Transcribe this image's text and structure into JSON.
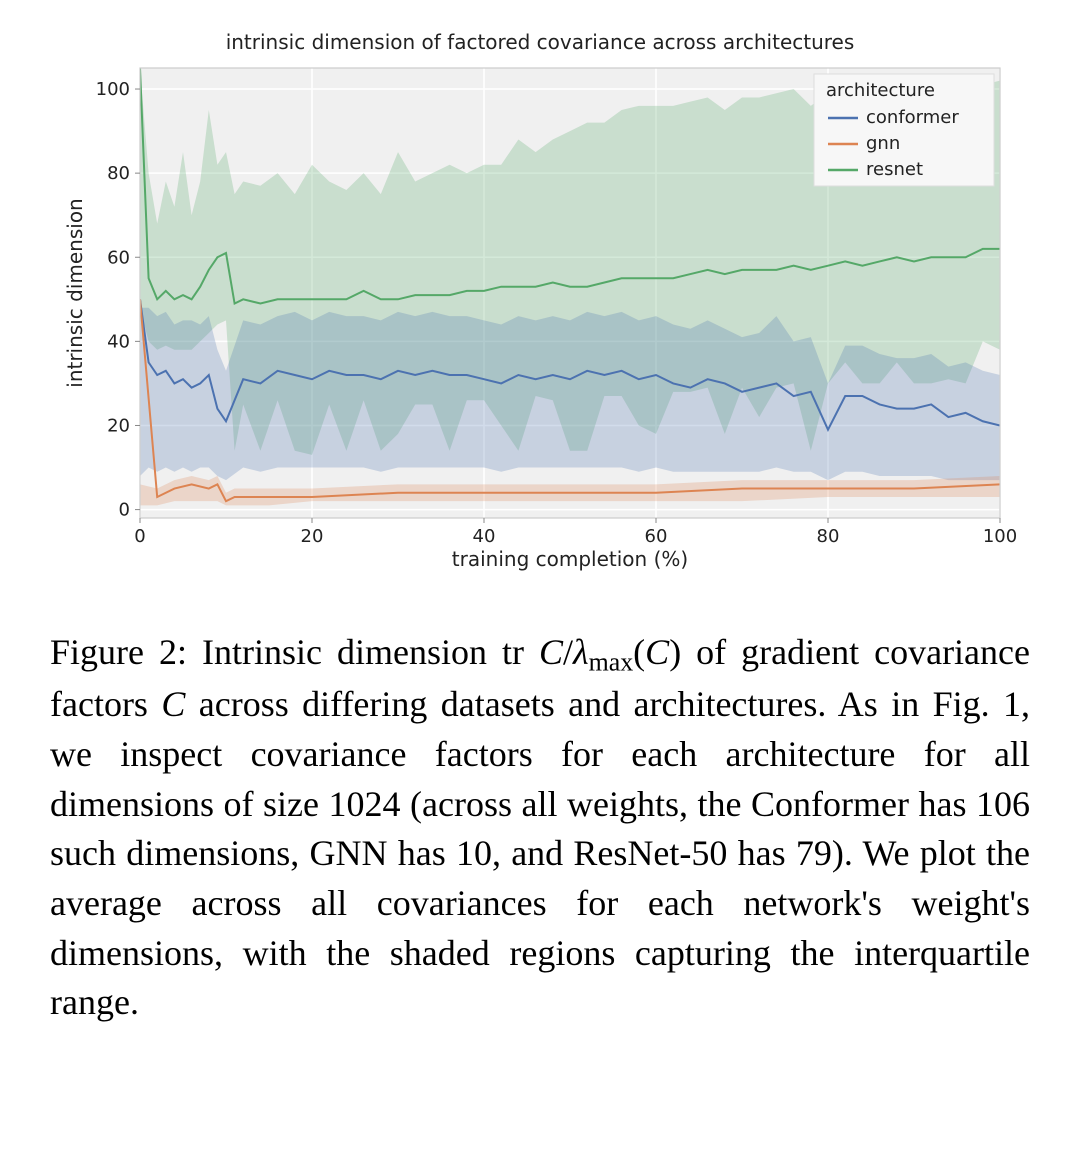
{
  "chart": {
    "type": "line",
    "title": "intrinsic dimension of factored covariance across architectures",
    "xlabel": "training completion (%)",
    "ylabel": "intrinsic dimension",
    "xlim": [
      0,
      100
    ],
    "ylim": [
      -2,
      105
    ],
    "xtick_step": 20,
    "ytick_step": 20,
    "xticks": [
      0,
      20,
      40,
      60,
      80,
      100
    ],
    "yticks": [
      0,
      20,
      40,
      60,
      80,
      100
    ],
    "plot_bg": "#f0f0f0",
    "grid_color": "#ffffff",
    "spine_color": "#cccccc",
    "line_width": 2.0,
    "band_opacity": 0.25,
    "legend": {
      "title": "architecture",
      "items": [
        "conformer",
        "gnn",
        "resnet"
      ],
      "bg": "#f7f7f7",
      "border": "#dddddd"
    },
    "series": {
      "conformer": {
        "color": "#4c72b0",
        "x": [
          0,
          1,
          2,
          3,
          4,
          5,
          6,
          7,
          8,
          9,
          10,
          12,
          14,
          16,
          18,
          20,
          22,
          24,
          26,
          28,
          30,
          32,
          34,
          36,
          38,
          40,
          42,
          44,
          46,
          48,
          50,
          52,
          54,
          56,
          58,
          60,
          62,
          64,
          66,
          68,
          70,
          72,
          74,
          76,
          78,
          80,
          82,
          84,
          86,
          88,
          90,
          92,
          94,
          96,
          98,
          100
        ],
        "mean": [
          50,
          35,
          32,
          33,
          30,
          31,
          29,
          30,
          32,
          24,
          21,
          31,
          30,
          33,
          32,
          31,
          33,
          32,
          32,
          31,
          33,
          32,
          33,
          32,
          32,
          31,
          30,
          32,
          31,
          32,
          31,
          33,
          32,
          33,
          31,
          32,
          30,
          29,
          31,
          30,
          28,
          29,
          30,
          27,
          28,
          19,
          27,
          27,
          25,
          24,
          24,
          25,
          22,
          23,
          21,
          20
        ],
        "lo": [
          8,
          10,
          9,
          10,
          9,
          10,
          9,
          10,
          10,
          8,
          7,
          10,
          9,
          10,
          10,
          10,
          10,
          10,
          10,
          9,
          10,
          10,
          10,
          10,
          10,
          10,
          9,
          10,
          10,
          10,
          10,
          10,
          10,
          10,
          9,
          10,
          9,
          9,
          9,
          9,
          9,
          9,
          10,
          9,
          9,
          7,
          9,
          9,
          8,
          8,
          8,
          8,
          7,
          7,
          7,
          7
        ],
        "hi": [
          48,
          48,
          46,
          47,
          44,
          45,
          45,
          44,
          46,
          38,
          33,
          45,
          44,
          46,
          47,
          45,
          47,
          46,
          46,
          45,
          47,
          46,
          47,
          46,
          46,
          45,
          44,
          46,
          45,
          46,
          45,
          47,
          46,
          47,
          45,
          46,
          44,
          43,
          45,
          43,
          41,
          42,
          46,
          40,
          41,
          30,
          39,
          39,
          37,
          36,
          36,
          37,
          34,
          35,
          33,
          32
        ]
      },
      "gnn": {
        "color": "#dd8452",
        "x": [
          0,
          2,
          4,
          6,
          8,
          9,
          10,
          11,
          15,
          20,
          30,
          40,
          50,
          60,
          70,
          80,
          90,
          100
        ],
        "mean": [
          50,
          3,
          5,
          6,
          5,
          6,
          2,
          3,
          3,
          3,
          4,
          4,
          4,
          4,
          5,
          5,
          5,
          6
        ],
        "lo": [
          1,
          1,
          2,
          2,
          2,
          2,
          1,
          1,
          1,
          2,
          2,
          2,
          2,
          2,
          2,
          3,
          3,
          3
        ],
        "hi": [
          6,
          5,
          7,
          8,
          7,
          8,
          4,
          5,
          5,
          5,
          6,
          6,
          6,
          6,
          7,
          7,
          7,
          8
        ]
      },
      "resnet": {
        "color": "#55a868",
        "x": [
          0,
          1,
          2,
          3,
          4,
          5,
          6,
          7,
          8,
          9,
          10,
          11,
          12,
          14,
          16,
          18,
          20,
          22,
          24,
          26,
          28,
          30,
          32,
          34,
          36,
          38,
          40,
          42,
          44,
          46,
          48,
          50,
          52,
          54,
          56,
          58,
          60,
          62,
          64,
          66,
          68,
          70,
          72,
          74,
          76,
          78,
          80,
          82,
          84,
          86,
          88,
          90,
          92,
          94,
          96,
          98,
          100
        ],
        "mean": [
          105,
          55,
          50,
          52,
          50,
          51,
          50,
          53,
          57,
          60,
          61,
          49,
          50,
          49,
          50,
          50,
          50,
          50,
          50,
          52,
          50,
          50,
          51,
          51,
          51,
          52,
          52,
          53,
          53,
          53,
          54,
          53,
          53,
          54,
          55,
          55,
          55,
          55,
          56,
          57,
          56,
          57,
          57,
          57,
          58,
          57,
          58,
          59,
          58,
          59,
          60,
          59,
          60,
          60,
          60,
          62,
          62
        ],
        "lo": [
          48,
          40,
          38,
          39,
          38,
          38,
          38,
          40,
          42,
          44,
          45,
          14,
          25,
          14,
          26,
          14,
          13,
          25,
          14,
          26,
          14,
          18,
          25,
          25,
          14,
          26,
          26,
          20,
          14,
          27,
          26,
          14,
          14,
          27,
          27,
          20,
          18,
          28,
          28,
          29,
          18,
          29,
          22,
          29,
          30,
          14,
          30,
          35,
          30,
          30,
          35,
          30,
          30,
          31,
          30,
          40,
          38
        ],
        "hi": [
          105,
          80,
          68,
          78,
          72,
          85,
          70,
          78,
          95,
          82,
          85,
          75,
          78,
          77,
          80,
          75,
          82,
          78,
          76,
          80,
          75,
          85,
          78,
          80,
          82,
          80,
          82,
          82,
          88,
          85,
          88,
          90,
          92,
          92,
          95,
          96,
          96,
          96,
          97,
          98,
          95,
          98,
          98,
          99,
          100,
          96,
          99,
          100,
          99,
          100,
          101,
          99,
          100,
          100,
          100,
          101,
          102
        ]
      }
    }
  },
  "caption": {
    "label": "Figure 2:",
    "text_before_expr": "  Intrinsic dimension ",
    "expr_html": "tr <span class='math-it'>C</span>/<span class='math-it'>λ</span><span class='sub'>max</span>(<span class='math-it'>C</span>)",
    "text_after_expr": " of gradient covariance factors ",
    "C": "C",
    "rest": " across differing datasets and architectures. As in Fig. 1, we inspect covariance factors for each architecture for all dimensions of size 1024 (across all weights, the Conformer has 106 such dimensions, GNN has 10, and ResNet-50 has 79). We plot the average across all covariances for each network's weight's dimensions, with the shaded regions capturing the interquartile range."
  }
}
